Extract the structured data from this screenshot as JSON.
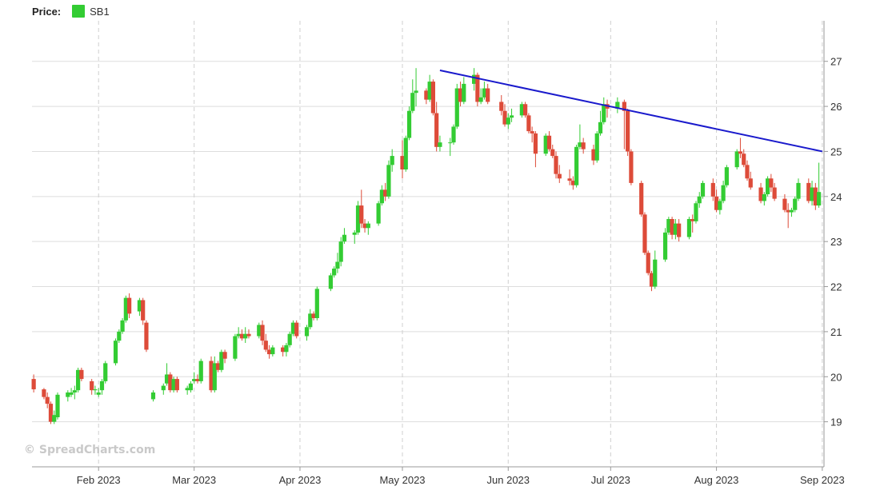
{
  "legend": {
    "price_label": "Price:",
    "series_name": "SB1"
  },
  "watermark": "© SpreadCharts.com",
  "colors": {
    "up": "#33cc33",
    "down": "#dd4b39",
    "trendline": "#1a1acc",
    "grid": "#dddddd"
  },
  "chart_data": {
    "type": "candlestick",
    "series_name": "SB1",
    "y_ticks": [
      19,
      20,
      21,
      22,
      23,
      24,
      25,
      26,
      27
    ],
    "ylim": [
      18.0,
      27.9
    ],
    "x_range": [
      "2023-01-13",
      "2023-09-01"
    ],
    "x_ticks": [
      {
        "date": "2023-02-01",
        "label": "Feb 2023"
      },
      {
        "date": "2023-03-01",
        "label": "Mar 2023"
      },
      {
        "date": "2023-04-01",
        "label": "Apr 2023"
      },
      {
        "date": "2023-05-01",
        "label": "May 2023"
      },
      {
        "date": "2023-06-01",
        "label": "Jun 2023"
      },
      {
        "date": "2023-07-01",
        "label": "Jul 2023"
      },
      {
        "date": "2023-08-01",
        "label": "Aug 2023"
      },
      {
        "date": "2023-09-01",
        "label": "Sep 2023"
      }
    ],
    "trendline": {
      "from": {
        "date": "2023-05-12",
        "value": 26.8
      },
      "to": {
        "date": "2023-09-01",
        "value": 25.0
      }
    },
    "grid": true,
    "legend_position": "top-left",
    "ohlc": [
      [
        "2023-01-13",
        19.95,
        20.05,
        19.65,
        19.72
      ],
      [
        "2023-01-16",
        19.72,
        19.75,
        19.5,
        19.55
      ],
      [
        "2023-01-17",
        19.55,
        19.65,
        19.3,
        19.4
      ],
      [
        "2023-01-18",
        19.4,
        19.45,
        18.95,
        19.0
      ],
      [
        "2023-01-19",
        19.0,
        19.25,
        18.95,
        19.15
      ],
      [
        "2023-01-20",
        19.1,
        19.65,
        19.05,
        19.6
      ],
      [
        "2023-01-23",
        19.55,
        19.7,
        19.45,
        19.65
      ],
      [
        "2023-01-24",
        19.6,
        19.75,
        19.55,
        19.65
      ],
      [
        "2023-01-25",
        19.65,
        19.8,
        19.5,
        19.7
      ],
      [
        "2023-01-26",
        19.7,
        20.2,
        19.65,
        20.15
      ],
      [
        "2023-01-27",
        20.15,
        20.2,
        19.9,
        19.95
      ],
      [
        "2023-01-30",
        19.9,
        19.95,
        19.6,
        19.7
      ],
      [
        "2023-01-31",
        19.7,
        19.8,
        19.6,
        19.72
      ],
      [
        "2023-02-01",
        19.6,
        19.75,
        19.55,
        19.65
      ],
      [
        "2023-02-02",
        19.7,
        19.95,
        19.6,
        19.9
      ],
      [
        "2023-02-03",
        19.9,
        20.35,
        19.85,
        20.3
      ],
      [
        "2023-02-06",
        20.3,
        20.85,
        20.25,
        20.8
      ],
      [
        "2023-02-07",
        20.8,
        21.05,
        20.75,
        21.0
      ],
      [
        "2023-02-08",
        21.0,
        21.3,
        20.95,
        21.25
      ],
      [
        "2023-02-09",
        21.25,
        21.8,
        21.2,
        21.75
      ],
      [
        "2023-02-10",
        21.75,
        21.85,
        21.3,
        21.4
      ],
      [
        "2023-02-13",
        21.45,
        21.75,
        21.35,
        21.7
      ],
      [
        "2023-02-14",
        21.7,
        21.75,
        21.15,
        21.25
      ],
      [
        "2023-02-15",
        21.2,
        21.25,
        20.55,
        20.6
      ],
      [
        "2023-02-17",
        19.5,
        19.7,
        19.45,
        19.65
      ],
      [
        "2023-02-20",
        19.7,
        19.85,
        19.6,
        19.8
      ],
      [
        "2023-02-21",
        19.85,
        20.3,
        19.8,
        20.05
      ],
      [
        "2023-02-22",
        20.05,
        20.1,
        19.65,
        19.7
      ],
      [
        "2023-02-23",
        19.7,
        20.0,
        19.65,
        19.95
      ],
      [
        "2023-02-24",
        19.95,
        20.0,
        19.65,
        19.7
      ],
      [
        "2023-02-27",
        19.7,
        19.8,
        19.6,
        19.75
      ],
      [
        "2023-02-28",
        19.7,
        19.9,
        19.65,
        19.85
      ],
      [
        "2023-03-01",
        19.9,
        20.1,
        19.85,
        19.95
      ],
      [
        "2023-03-02",
        19.95,
        20.05,
        19.85,
        19.9
      ],
      [
        "2023-03-03",
        19.9,
        20.4,
        19.85,
        20.35
      ],
      [
        "2023-03-06",
        20.35,
        20.45,
        19.65,
        19.7
      ],
      [
        "2023-03-07",
        19.7,
        20.45,
        19.65,
        20.3
      ],
      [
        "2023-03-08",
        20.3,
        20.35,
        20.1,
        20.15
      ],
      [
        "2023-03-09",
        20.15,
        20.6,
        20.1,
        20.55
      ],
      [
        "2023-03-10",
        20.55,
        20.6,
        20.3,
        20.4
      ],
      [
        "2023-03-13",
        20.4,
        20.95,
        20.35,
        20.9
      ],
      [
        "2023-03-14",
        20.9,
        21.1,
        20.85,
        20.95
      ],
      [
        "2023-03-15",
        20.95,
        21.05,
        20.8,
        20.85
      ],
      [
        "2023-03-16",
        20.85,
        21.1,
        20.75,
        20.95
      ],
      [
        "2023-03-17",
        20.95,
        21.05,
        20.85,
        20.9
      ],
      [
        "2023-03-20",
        20.9,
        21.2,
        20.85,
        21.15
      ],
      [
        "2023-03-21",
        21.15,
        21.25,
        20.7,
        20.8
      ],
      [
        "2023-03-22",
        20.8,
        20.95,
        20.55,
        20.6
      ],
      [
        "2023-03-23",
        20.6,
        20.7,
        20.4,
        20.5
      ],
      [
        "2023-03-24",
        20.5,
        20.7,
        20.45,
        20.65
      ],
      [
        "2023-03-27",
        20.65,
        20.7,
        20.45,
        20.55
      ],
      [
        "2023-03-28",
        20.55,
        20.75,
        20.45,
        20.7
      ],
      [
        "2023-03-29",
        20.7,
        21.0,
        20.65,
        20.95
      ],
      [
        "2023-03-30",
        20.95,
        21.25,
        20.9,
        21.2
      ],
      [
        "2023-03-31",
        21.2,
        21.25,
        20.85,
        20.9
      ],
      [
        "2023-04-03",
        20.9,
        21.15,
        20.8,
        21.1
      ],
      [
        "2023-04-04",
        21.1,
        21.5,
        21.05,
        21.4
      ],
      [
        "2023-04-05",
        21.4,
        21.45,
        21.25,
        21.3
      ],
      [
        "2023-04-06",
        21.3,
        22.0,
        21.25,
        21.95
      ],
      [
        "2023-04-10",
        21.95,
        22.3,
        21.9,
        22.25
      ],
      [
        "2023-04-11",
        22.25,
        22.45,
        22.2,
        22.4
      ],
      [
        "2023-04-12",
        22.4,
        22.75,
        22.3,
        22.55
      ],
      [
        "2023-04-13",
        22.55,
        23.1,
        22.45,
        23.0
      ],
      [
        "2023-04-14",
        23.0,
        23.3,
        22.95,
        23.15
      ],
      [
        "2023-04-17",
        23.15,
        23.25,
        22.95,
        23.2
      ],
      [
        "2023-04-18",
        23.2,
        23.9,
        23.15,
        23.8
      ],
      [
        "2023-04-19",
        23.8,
        24.15,
        23.3,
        23.4
      ],
      [
        "2023-04-20",
        23.4,
        23.5,
        23.2,
        23.3
      ],
      [
        "2023-04-21",
        23.3,
        23.45,
        23.15,
        23.4
      ],
      [
        "2023-04-24",
        23.4,
        23.9,
        23.35,
        23.85
      ],
      [
        "2023-04-25",
        23.85,
        24.25,
        23.8,
        24.15
      ],
      [
        "2023-04-26",
        24.15,
        24.3,
        23.9,
        24.0
      ],
      [
        "2023-04-27",
        24.0,
        24.8,
        23.95,
        24.7
      ],
      [
        "2023-04-28",
        24.7,
        25.05,
        24.55,
        24.9
      ],
      [
        "2023-05-01",
        24.9,
        25.25,
        24.4,
        24.6
      ],
      [
        "2023-05-02",
        24.6,
        25.35,
        24.55,
        25.3
      ],
      [
        "2023-05-03",
        25.3,
        26.0,
        25.25,
        25.9
      ],
      [
        "2023-05-04",
        25.9,
        26.6,
        25.85,
        26.3
      ],
      [
        "2023-05-05",
        26.3,
        26.85,
        26.0,
        26.35
      ],
      [
        "2023-05-08",
        26.35,
        26.4,
        26.05,
        26.15
      ],
      [
        "2023-05-09",
        26.15,
        26.7,
        26.1,
        26.55
      ],
      [
        "2023-05-10",
        26.55,
        26.6,
        25.8,
        25.85
      ],
      [
        "2023-05-11",
        25.85,
        26.1,
        25.0,
        25.1
      ],
      [
        "2023-05-12",
        25.1,
        25.35,
        25.0,
        25.2
      ],
      [
        "2023-05-15",
        25.2,
        25.3,
        24.9,
        25.2
      ],
      [
        "2023-05-16",
        25.2,
        25.6,
        25.15,
        25.55
      ],
      [
        "2023-05-17",
        25.55,
        26.5,
        25.5,
        26.4
      ],
      [
        "2023-05-18",
        26.4,
        26.55,
        26.0,
        26.1
      ],
      [
        "2023-05-19",
        26.1,
        26.65,
        26.05,
        26.5
      ],
      [
        "2023-05-22",
        26.5,
        26.85,
        26.35,
        26.7
      ],
      [
        "2023-05-23",
        26.7,
        26.75,
        26.0,
        26.1
      ],
      [
        "2023-05-24",
        26.1,
        26.4,
        26.05,
        26.2
      ],
      [
        "2023-05-25",
        26.2,
        26.55,
        26.15,
        26.4
      ],
      [
        "2023-05-26",
        26.4,
        26.5,
        26.05,
        26.1
      ],
      [
        "2023-05-30",
        26.1,
        26.25,
        25.8,
        25.9
      ],
      [
        "2023-05-31",
        25.9,
        26.05,
        25.55,
        25.6
      ],
      [
        "2023-06-01",
        25.6,
        25.85,
        25.5,
        25.75
      ],
      [
        "2023-06-02",
        25.75,
        25.95,
        25.65,
        25.8
      ],
      [
        "2023-06-05",
        25.8,
        26.1,
        25.75,
        26.05
      ],
      [
        "2023-06-06",
        26.05,
        26.1,
        25.75,
        25.8
      ],
      [
        "2023-06-07",
        25.8,
        25.85,
        25.4,
        25.45
      ],
      [
        "2023-06-08",
        25.45,
        25.55,
        25.2,
        25.4
      ],
      [
        "2023-06-09",
        25.4,
        25.45,
        24.65,
        24.95
      ],
      [
        "2023-06-12",
        24.95,
        25.4,
        24.9,
        25.35
      ],
      [
        "2023-06-13",
        25.35,
        25.45,
        25.0,
        25.05
      ],
      [
        "2023-06-14",
        25.05,
        25.15,
        24.85,
        24.9
      ],
      [
        "2023-06-15",
        24.9,
        25.0,
        24.4,
        24.5
      ],
      [
        "2023-06-16",
        24.5,
        24.7,
        24.3,
        24.4
      ],
      [
        "2023-06-19",
        24.4,
        24.6,
        24.25,
        24.35
      ],
      [
        "2023-06-20",
        24.35,
        24.45,
        24.15,
        24.25
      ],
      [
        "2023-06-21",
        24.25,
        25.15,
        24.2,
        25.1
      ],
      [
        "2023-06-22",
        25.1,
        25.6,
        25.05,
        25.2
      ],
      [
        "2023-06-23",
        25.2,
        25.3,
        24.95,
        25.05
      ],
      [
        "2023-06-26",
        25.05,
        25.15,
        24.7,
        24.8
      ],
      [
        "2023-06-27",
        24.8,
        25.45,
        24.75,
        25.4
      ],
      [
        "2023-06-28",
        25.4,
        25.9,
        25.35,
        25.65
      ],
      [
        "2023-06-29",
        25.65,
        26.2,
        25.6,
        26.05
      ],
      [
        "2023-06-30",
        26.05,
        26.15,
        25.75,
        25.95
      ],
      [
        "2023-07-03",
        25.95,
        26.2,
        25.85,
        26.1
      ],
      [
        "2023-07-05",
        26.1,
        26.15,
        25.05,
        25.9
      ],
      [
        "2023-07-06",
        25.9,
        25.95,
        24.9,
        25.0
      ],
      [
        "2023-07-07",
        25.0,
        25.05,
        24.25,
        24.3
      ],
      [
        "2023-07-10",
        24.3,
        24.35,
        23.55,
        23.6
      ],
      [
        "2023-07-11",
        23.6,
        23.65,
        22.7,
        22.75
      ],
      [
        "2023-07-12",
        22.75,
        22.8,
        22.25,
        22.3
      ],
      [
        "2023-07-13",
        22.3,
        22.35,
        21.9,
        22.0
      ],
      [
        "2023-07-14",
        22.0,
        22.8,
        21.95,
        22.6
      ],
      [
        "2023-07-17",
        22.6,
        23.3,
        22.55,
        23.2
      ],
      [
        "2023-07-18",
        23.2,
        23.55,
        23.15,
        23.5
      ],
      [
        "2023-07-19",
        23.5,
        23.55,
        23.05,
        23.15
      ],
      [
        "2023-07-20",
        23.15,
        23.5,
        23.05,
        23.4
      ],
      [
        "2023-07-21",
        23.4,
        23.5,
        23.0,
        23.1
      ],
      [
        "2023-07-24",
        23.1,
        23.55,
        23.05,
        23.5
      ],
      [
        "2023-07-25",
        23.5,
        23.6,
        23.2,
        23.45
      ],
      [
        "2023-07-26",
        23.45,
        23.9,
        23.4,
        23.85
      ],
      [
        "2023-07-27",
        23.85,
        24.1,
        23.75,
        24.0
      ],
      [
        "2023-07-28",
        24.0,
        24.35,
        23.95,
        24.3
      ],
      [
        "2023-07-31",
        24.3,
        24.4,
        23.9,
        24.0
      ],
      [
        "2023-08-01",
        24.0,
        24.15,
        23.65,
        23.7
      ],
      [
        "2023-08-02",
        23.7,
        23.95,
        23.6,
        23.9
      ],
      [
        "2023-08-03",
        23.9,
        24.35,
        23.85,
        24.25
      ],
      [
        "2023-08-04",
        24.25,
        24.7,
        24.2,
        24.65
      ],
      [
        "2023-08-07",
        24.65,
        25.05,
        24.6,
        25.0
      ],
      [
        "2023-08-08",
        25.0,
        25.3,
        24.85,
        24.95
      ],
      [
        "2023-08-09",
        24.95,
        25.05,
        24.65,
        24.7
      ],
      [
        "2023-08-10",
        24.7,
        24.8,
        24.35,
        24.4
      ],
      [
        "2023-08-11",
        24.4,
        24.55,
        24.15,
        24.2
      ],
      [
        "2023-08-14",
        24.2,
        24.3,
        23.85,
        23.9
      ],
      [
        "2023-08-15",
        23.9,
        24.1,
        23.8,
        24.05
      ],
      [
        "2023-08-16",
        24.05,
        24.45,
        24.0,
        24.4
      ],
      [
        "2023-08-17",
        24.4,
        24.5,
        24.1,
        24.2
      ],
      [
        "2023-08-18",
        24.2,
        24.3,
        23.9,
        23.95
      ],
      [
        "2023-08-21",
        23.95,
        24.05,
        23.65,
        23.7
      ],
      [
        "2023-08-22",
        23.7,
        23.85,
        23.3,
        23.65
      ],
      [
        "2023-08-23",
        23.65,
        23.75,
        23.55,
        23.7
      ],
      [
        "2023-08-24",
        23.7,
        24.0,
        23.65,
        23.95
      ],
      [
        "2023-08-25",
        23.95,
        24.4,
        23.9,
        24.3
      ],
      [
        "2023-08-28",
        24.3,
        24.4,
        23.85,
        23.9
      ],
      [
        "2023-08-29",
        23.9,
        24.35,
        23.8,
        24.2
      ],
      [
        "2023-08-30",
        24.2,
        24.3,
        23.7,
        23.8
      ],
      [
        "2023-08-31",
        23.8,
        24.75,
        23.75,
        24.1
      ]
    ]
  }
}
